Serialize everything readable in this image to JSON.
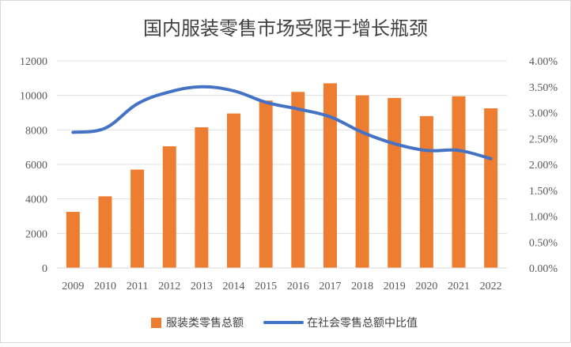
{
  "chart_data": {
    "type": "bar",
    "title": "国内服装零售市场受限于增长瓶颈",
    "categories": [
      "2009",
      "2010",
      "2011",
      "2012",
      "2013",
      "2014",
      "2015",
      "2016",
      "2017",
      "2018",
      "2019",
      "2020",
      "2021",
      "2022"
    ],
    "series": [
      {
        "name": "服装类零售总额",
        "type": "bar",
        "axis": "left",
        "color": "#ed7d31",
        "values": [
          3250,
          4150,
          5700,
          7050,
          8150,
          8950,
          9700,
          10200,
          10700,
          10000,
          9850,
          8800,
          9950,
          9250
        ]
      },
      {
        "name": "在社会零售总额中比值",
        "type": "line",
        "axis": "right",
        "color": "#4472c4",
        "values": [
          0.0262,
          0.027,
          0.0317,
          0.034,
          0.035,
          0.0342,
          0.032,
          0.0307,
          0.0292,
          0.0262,
          0.024,
          0.0227,
          0.0227,
          0.0211
        ]
      }
    ],
    "y_left": {
      "ylim": [
        0,
        12000
      ],
      "ticks": [
        "0",
        "2000",
        "4000",
        "6000",
        "8000",
        "10000",
        "12000"
      ]
    },
    "y_right": {
      "ylim": [
        0,
        0.04
      ],
      "ticks": [
        "0.00%",
        "0.50%",
        "1.00%",
        "1.50%",
        "2.00%",
        "2.50%",
        "3.00%",
        "3.50%",
        "4.00%"
      ]
    },
    "grid": true,
    "legend_position": "bottom"
  }
}
